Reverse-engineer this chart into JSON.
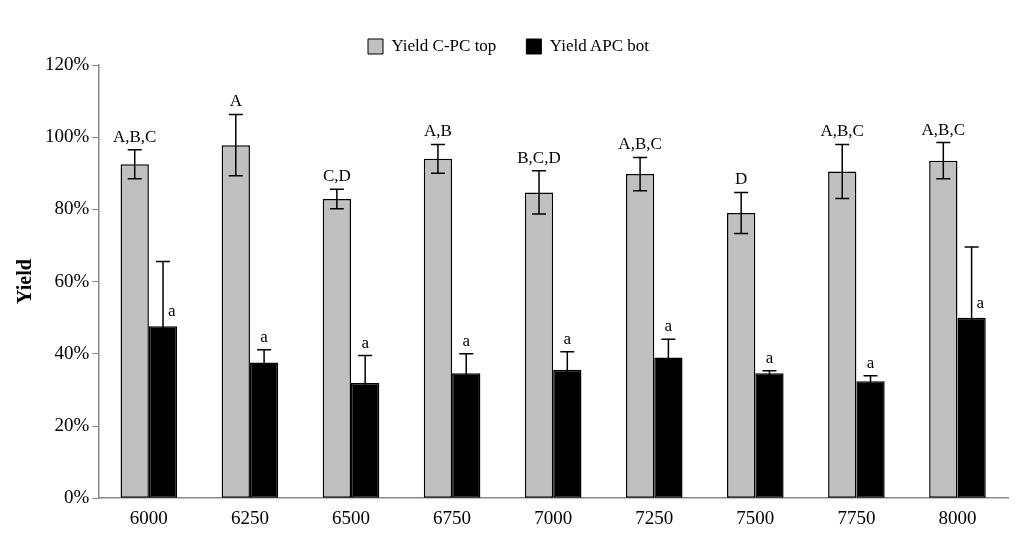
{
  "chart_data": {
    "type": "bar",
    "ylabel": "Yield",
    "categories": [
      "6000",
      "6250",
      "6500",
      "6750",
      "7000",
      "7250",
      "7500",
      "7750",
      "8000"
    ],
    "series": [
      {
        "name": "Yield C-PC top",
        "color": "#c0c0c0",
        "values": [
          92.5,
          97.8,
          82.9,
          94,
          84.7,
          89.8,
          79,
          90.5,
          93.5
        ],
        "errors": [
          4,
          8.5,
          2.7,
          4,
          6,
          4.6,
          5.7,
          7.5,
          5
        ],
        "value_labels": [
          "A,B,C",
          "A",
          "C,D",
          "A,B",
          "B,C,D",
          "A,B,C",
          "D",
          "A,B,C",
          "A,B,C"
        ]
      },
      {
        "name": "Yield APC bot",
        "color": "#000000",
        "values": [
          47.6,
          37.6,
          31.9,
          34.6,
          35.6,
          39,
          34.6,
          32.4,
          50
        ],
        "errors": [
          18,
          3.5,
          7.6,
          5.4,
          5,
          5,
          0.7,
          1.5,
          19.6
        ],
        "value_labels": [
          "a",
          "a",
          "a",
          "a",
          "a",
          "a",
          "a",
          "a",
          "a"
        ]
      }
    ],
    "ylim": [
      0,
      120
    ],
    "yticks": [
      {
        "value": 0,
        "label": "0%"
      },
      {
        "value": 20,
        "label": "20%"
      },
      {
        "value": 40,
        "label": "40%"
      },
      {
        "value": 60,
        "label": "60%"
      },
      {
        "value": 80,
        "label": "80%"
      },
      {
        "value": 100,
        "label": "100%"
      },
      {
        "value": 120,
        "label": "120%"
      }
    ],
    "grid": false,
    "legend": "top"
  }
}
